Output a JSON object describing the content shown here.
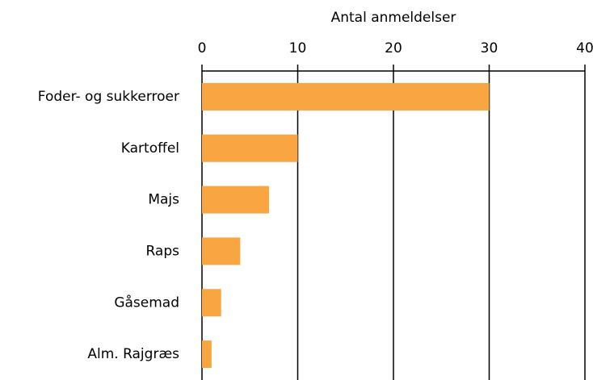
{
  "chart_data": {
    "type": "bar",
    "orientation": "horizontal",
    "x_label": "Antal anmeldelser",
    "categories": [
      "Foder- og sukkerroer",
      "Kartoffel",
      "Majs",
      "Raps",
      "Gåsemad",
      "Alm. Rajgræs"
    ],
    "values": [
      30,
      10,
      7,
      4,
      2,
      1
    ],
    "color": "#f9a541",
    "xlim": [
      0,
      40
    ],
    "xticks": [
      0,
      10,
      20,
      30,
      40
    ],
    "grid": true
  }
}
